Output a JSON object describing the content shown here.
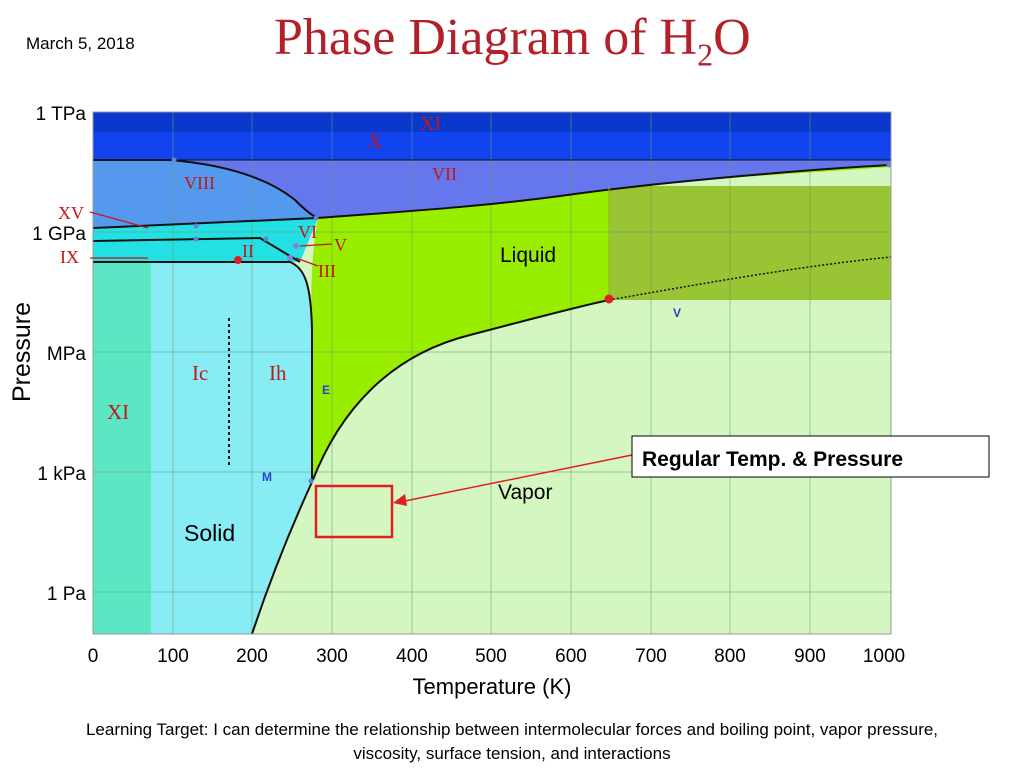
{
  "header": {
    "date": "March 5, 2018",
    "title_main": "Phase Diagram of H",
    "title_sub": "2",
    "title_end": "O"
  },
  "diagram": {
    "y_axis_label": "Pressure",
    "x_axis_label": "Temperature (K)",
    "y_ticks": [
      "1 TPa",
      "1 GPa",
      "MPa",
      "1 kPa",
      "1 Pa"
    ],
    "x_ticks": [
      "0",
      "100",
      "200",
      "300",
      "400",
      "500",
      "600",
      "700",
      "800",
      "900",
      "1000"
    ],
    "phase_labels": {
      "liquid": "Liquid",
      "vapor": "Vapor",
      "solid": "Solid",
      "ic": "Ic",
      "ih": "Ih",
      "xi_low": "XI",
      "xi_high": "XI",
      "x": "X",
      "vii": "VII",
      "viii": "VIII",
      "xv": "XV",
      "ix": "IX",
      "ii": "II",
      "vi": "VI",
      "v": "V",
      "iii": "III"
    },
    "point_labels": {
      "e": "E",
      "m": "M",
      "v": "V"
    },
    "callout": "Regular Temp. & Pressure",
    "colors": {
      "liquid": "#99ee00",
      "vapor": "#d4f7c2",
      "solid": "#88ecf5",
      "xi_region": "#5ce6c4",
      "high_pressure_blue": "#1144ee",
      "supercritical": "#99c433",
      "accent_red": "#e02020",
      "roman_label": "#c01818"
    }
  },
  "footer": {
    "line1": "Learning Target: I can determine the relationship between intermolecular forces and boiling point, vapor pressure,",
    "line2": "viscosity, surface tension, and interactions"
  }
}
